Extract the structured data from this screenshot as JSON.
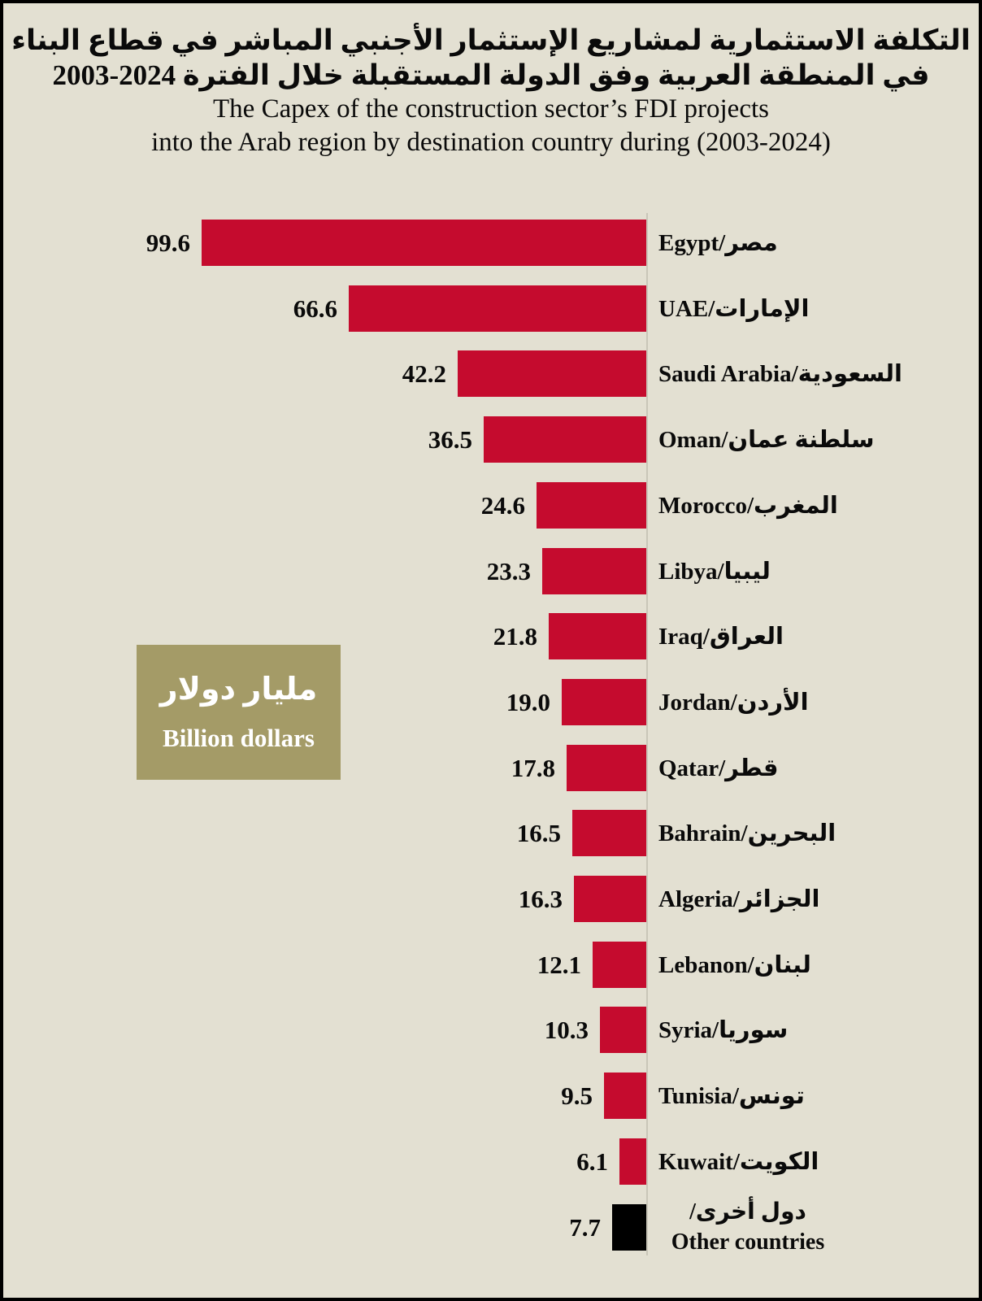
{
  "title": {
    "ar1": "التكلفة الاستثمارية لمشاريع الإستثمار الأجنبي المباشر في قطاع البناء",
    "ar2": "في المنطقة العربية وفق الدولة المستقبلة خلال الفترة 2024-2003",
    "en1": "The Capex of the construction sector’s FDI projects",
    "en2": "into the Arab region by destination country during (2003-2024)"
  },
  "legend": {
    "ar": "مليار دولار",
    "en": "Billion dollars",
    "box_color": "#a49b67",
    "text_color": "#ffffff"
  },
  "colors": {
    "background": "#e3e0d2",
    "border": "#000000",
    "bar": "#c50b2e",
    "other_bar": "#000000",
    "baseline": "#c9c6b8",
    "text": "#0a0a0a"
  },
  "chart_data": {
    "type": "bar",
    "orientation": "horizontal-right-baseline",
    "unit_en": "Billion dollars",
    "unit_ar": "مليار دولار",
    "xlim": [
      0,
      100
    ],
    "grid": false,
    "legend_position": "middle-left",
    "categories": [
      "Egypt/مصر",
      "UAE/الإمارات",
      "Saudi Arabia/السعودية",
      "Oman/سلطنة عمان",
      "Morocco/المغرب",
      "Libya/ليبيا",
      "Iraq/العراق",
      "Jordan/الأردن",
      "Qatar/قطر",
      "Bahrain/البحرين",
      "Algeria/الجزائر",
      "Lebanon/لبنان",
      "Syria/سوريا",
      "Tunisia/تونس",
      "Kuwait/الكويت",
      "Other countries/دول أخرى"
    ],
    "values": [
      99.6,
      66.6,
      42.2,
      36.5,
      24.6,
      23.3,
      21.8,
      19.0,
      17.8,
      16.5,
      16.3,
      12.1,
      10.3,
      9.5,
      6.1,
      7.7
    ],
    "rows": [
      {
        "label": "Egypt/مصر",
        "value": 99.6,
        "value_label": "99.6"
      },
      {
        "label": "UAE/الإمارات",
        "value": 66.6,
        "value_label": "66.6"
      },
      {
        "label": "Saudi Arabia/السعودية",
        "value": 42.2,
        "value_label": "42.2"
      },
      {
        "label": "Oman/سلطنة عمان",
        "value": 36.5,
        "value_label": "36.5"
      },
      {
        "label": "Morocco/المغرب",
        "value": 24.6,
        "value_label": "24.6"
      },
      {
        "label": "Libya/ليبيا",
        "value": 23.3,
        "value_label": "23.3"
      },
      {
        "label": "Iraq/العراق",
        "value": 21.8,
        "value_label": "21.8"
      },
      {
        "label": "Jordan/الأردن",
        "value": 19.0,
        "value_label": "19.0"
      },
      {
        "label": "Qatar/قطر",
        "value": 17.8,
        "value_label": "17.8"
      },
      {
        "label": "Bahrain/البحرين",
        "value": 16.5,
        "value_label": "16.5"
      },
      {
        "label": "Algeria/الجزائر",
        "value": 16.3,
        "value_label": "16.3"
      },
      {
        "label": "Lebanon/لبنان",
        "value": 12.1,
        "value_label": "12.1"
      },
      {
        "label": "Syria/سوريا",
        "value": 10.3,
        "value_label": "10.3"
      },
      {
        "label": "Tunisia/تونس",
        "value": 9.5,
        "value_label": "9.5"
      },
      {
        "label": "Kuwait/الكويت",
        "value": 6.1,
        "value_label": "6.1"
      },
      {
        "label_ar": "دول أخرى/",
        "label_en": "Other countries",
        "value": 7.7,
        "value_label": "7.7",
        "color": "#000000"
      }
    ]
  }
}
